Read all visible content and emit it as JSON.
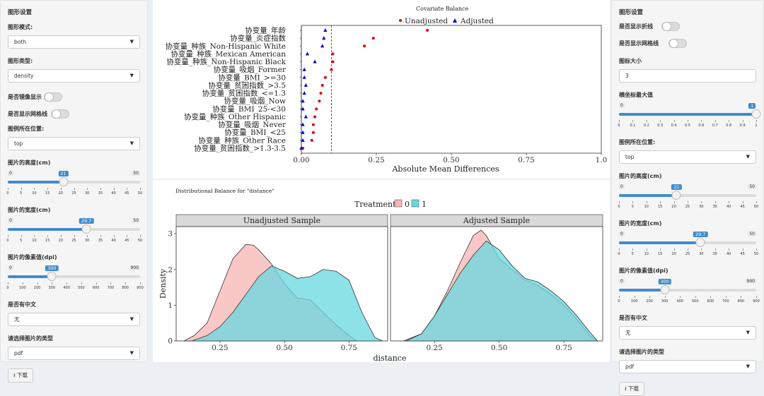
{
  "left": {
    "title": "图形设置",
    "mode_label": "图形模式:",
    "mode_value": "both",
    "type_label": "图形类型:",
    "type_value": "density",
    "mirror_label": "是否镜像显示",
    "grid_label": "是否显示网格线",
    "legend_label": "图例所在位置:",
    "legend_value": "top",
    "height_label": "图片的高度(cm)",
    "height": {
      "min": "0",
      "max": "50",
      "value": "21",
      "fraction": 0.42,
      "ticks": [
        "0",
        "5",
        "10",
        "15",
        "20",
        "25",
        "30",
        "35",
        "40",
        "45",
        "50"
      ]
    },
    "width_label": "图片的宽度(cm)",
    "width": {
      "min": "0",
      "max": "50",
      "value": "29.7",
      "fraction": 0.594,
      "ticks": [
        "0",
        "5",
        "10",
        "15",
        "20",
        "25",
        "30",
        "35",
        "40",
        "45",
        "50"
      ]
    },
    "dpi_label": "图片的像素值(dpi)",
    "dpi": {
      "min": "0",
      "max": "900",
      "value": "300",
      "fraction": 0.3333,
      "ticks": [
        "0",
        "100",
        "200",
        "300",
        "400",
        "500",
        "600",
        "700",
        "800",
        "900"
      ]
    },
    "chinese_label": "是否有中文",
    "chinese_value": "无",
    "filetype_label": "请选择图片的类型",
    "filetype_value": "pdf",
    "download_label": "下载"
  },
  "right": {
    "title": "图形设置",
    "line_label": "是否显示折线",
    "grid_label": "是否显示网格线",
    "size_label": "图标大小",
    "size_value": "3",
    "xmax_label": "横坐标最大值",
    "xmax": {
      "min": "0",
      "max": "1",
      "value": "1",
      "fraction": 1.0,
      "ticks": [
        "0",
        "0.1",
        "0.2",
        "0.3",
        "0.4",
        "0.5",
        "0.6",
        "0.7",
        "0.8",
        "0.9",
        "1"
      ]
    },
    "legend_label": "图例所在位置:",
    "legend_value": "top",
    "height_label": "图片的高度(cm)",
    "height": {
      "min": "0",
      "max": "50",
      "value": "21",
      "fraction": 0.42,
      "ticks": [
        "0",
        "5",
        "10",
        "15",
        "20",
        "25",
        "30",
        "35",
        "40",
        "45",
        "50"
      ]
    },
    "width_label": "图片的宽度(cm)",
    "width": {
      "min": "0",
      "max": "50",
      "value": "29.7",
      "fraction": 0.594,
      "ticks": [
        "0",
        "5",
        "10",
        "15",
        "20",
        "25",
        "30",
        "35",
        "40",
        "45",
        "50"
      ]
    },
    "dpi_label": "图片的像素值(dpi)",
    "dpi": {
      "min": "0",
      "max": "900",
      "value": "300",
      "fraction": 0.3333,
      "ticks": [
        "0",
        "100",
        "200",
        "300",
        "400",
        "500",
        "600",
        "700",
        "800",
        "900"
      ]
    },
    "chinese_label": "是否有中文",
    "chinese_value": "无",
    "filetype_label": "请选择图片的类型",
    "filetype_value": "pdf",
    "download_label": "下载"
  },
  "icons": {
    "caret": "caret-down-icon",
    "download": "download-icon"
  },
  "colors": {
    "accent": "#428bca",
    "unadjusted": "#e00000",
    "adjusted": "#0000cc",
    "treat0": "#f8b4b4",
    "treat1": "#67d8e0"
  },
  "chart_data": [
    {
      "type": "scatter",
      "title": "Covariate Balance",
      "xlabel": "Absolute Mean Differences",
      "xlim": [
        0,
        1.0
      ],
      "xticks": [
        "0.00",
        "0.25",
        "0.50",
        "0.75",
        "1.0"
      ],
      "threshold": 0.1,
      "legend": [
        "Unadjusted",
        "Adjusted"
      ],
      "categories": [
        "协变量_年龄",
        "协变量_炎症指数",
        "协变量_种族_Non-Hispanic White",
        "协变量_种族_Mexican American",
        "协变量_种族_Non-Hispanic Black",
        "协变量_吸烟_Former",
        "协变量_BMI_>=30",
        "协变量_贫困指数_>3.5",
        "协变量_贫困指数_<=1.3",
        "协变量_吸烟_Now",
        "协变量_BMI_25-<30",
        "协变量_种族_Other Hispanic",
        "协变量_吸烟_Never",
        "协变量_BMI_<25",
        "协变量_种族_Other Race",
        "协变量_贫困指数_>1.3-3.5"
      ],
      "series": [
        {
          "name": "Unadjusted",
          "values": [
            0.42,
            0.24,
            0.21,
            0.105,
            0.105,
            0.1,
            0.08,
            0.07,
            0.065,
            0.06,
            0.05,
            0.045,
            0.04,
            0.04,
            0.035,
            0.005
          ]
        },
        {
          "name": "Adjusted",
          "values": [
            0.08,
            0.075,
            0.07,
            0.02,
            0.045,
            0.01,
            0.01,
            0.015,
            0.01,
            0.005,
            0.005,
            0.015,
            0.005,
            0.005,
            0.005,
            0.0
          ]
        }
      ]
    },
    {
      "type": "area",
      "title": "Distributional Balance for \"distance\"",
      "legend_title": "Treatment",
      "legend": [
        "0",
        "1"
      ],
      "xlabel": "distance",
      "ylabel": "Density",
      "xlim": [
        0.08,
        0.9
      ],
      "ylim": [
        0,
        3.2
      ],
      "xticks": [
        "0.25",
        "0.50",
        "0.75"
      ],
      "yticks": [
        "0",
        "1",
        "2",
        "3"
      ],
      "panels": [
        {
          "name": "Unadjusted Sample",
          "series": [
            {
              "name": "0",
              "x": [
                0.11,
                0.15,
                0.2,
                0.25,
                0.3,
                0.35,
                0.38,
                0.4,
                0.45,
                0.5,
                0.55,
                0.6,
                0.65,
                0.7,
                0.75,
                0.78
              ],
              "y": [
                0.0,
                0.15,
                0.5,
                1.4,
                2.3,
                2.7,
                2.68,
                2.55,
                2.15,
                1.6,
                1.2,
                1.15,
                0.8,
                0.45,
                0.15,
                0.0
              ]
            },
            {
              "name": "1",
              "x": [
                0.14,
                0.2,
                0.25,
                0.3,
                0.35,
                0.4,
                0.45,
                0.5,
                0.55,
                0.6,
                0.65,
                0.7,
                0.75,
                0.8,
                0.85,
                0.88
              ],
              "y": [
                0.0,
                0.15,
                0.4,
                0.8,
                1.3,
                1.8,
                2.1,
                1.95,
                1.75,
                1.8,
                2.0,
                1.95,
                1.7,
                0.8,
                0.1,
                0.0
              ]
            }
          ]
        },
        {
          "name": "Adjusted Sample",
          "series": [
            {
              "name": "0",
              "x": [
                0.13,
                0.2,
                0.25,
                0.3,
                0.35,
                0.4,
                0.43,
                0.45,
                0.5,
                0.55,
                0.6,
                0.65,
                0.7,
                0.75,
                0.8,
                0.85,
                0.88
              ],
              "y": [
                0.0,
                0.2,
                0.7,
                1.4,
                2.2,
                2.95,
                3.1,
                2.95,
                2.3,
                2.0,
                1.7,
                1.55,
                1.3,
                1.0,
                0.6,
                0.15,
                0.0
              ]
            },
            {
              "name": "1",
              "x": [
                0.14,
                0.2,
                0.25,
                0.3,
                0.35,
                0.4,
                0.45,
                0.5,
                0.55,
                0.6,
                0.65,
                0.7,
                0.75,
                0.8,
                0.85,
                0.88
              ],
              "y": [
                0.0,
                0.2,
                0.7,
                1.3,
                1.9,
                2.4,
                2.8,
                2.55,
                2.1,
                1.75,
                1.65,
                1.4,
                1.1,
                0.7,
                0.25,
                0.0
              ]
            }
          ]
        }
      ]
    }
  ]
}
